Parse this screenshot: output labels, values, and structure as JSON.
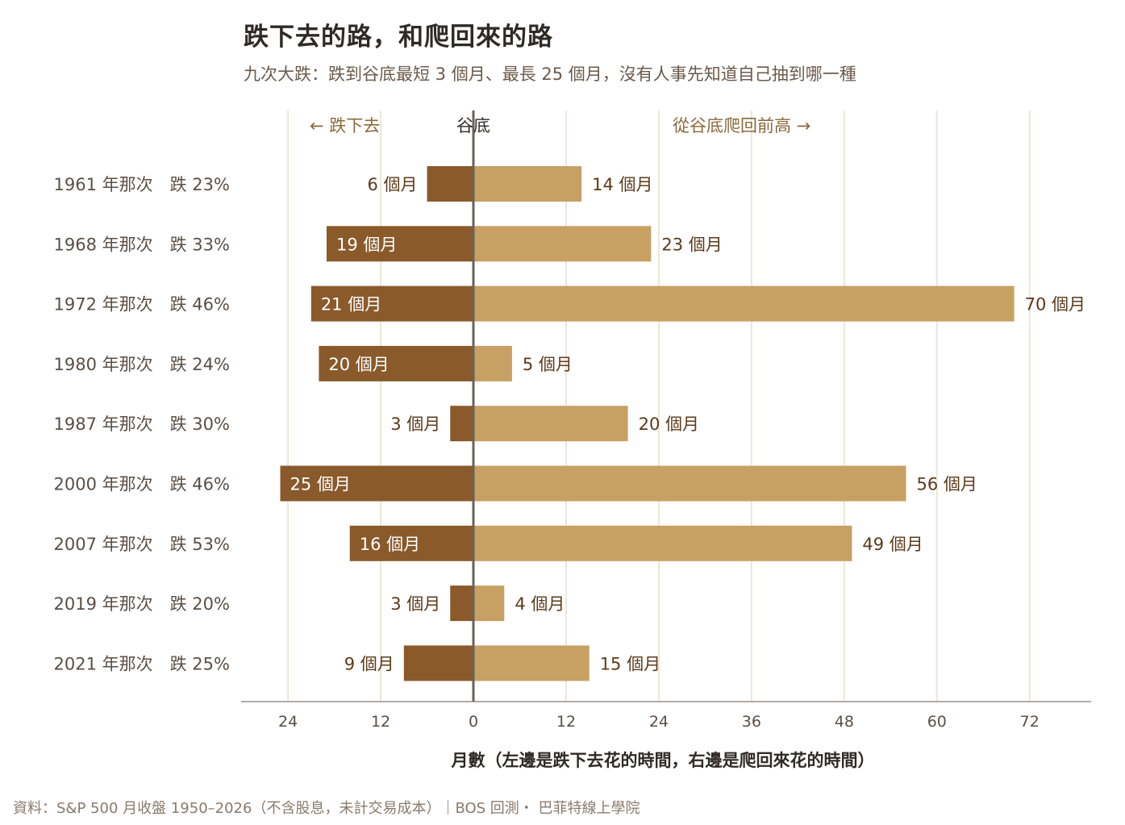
{
  "title": "跌下去的路，和爬回來的路",
  "subtitle": "九次大跌：跌到谷底最短 3 個月、最長 25 個月，沒有人事先知道自己抽到哪一種",
  "footer": "資料：S&P 500 月收盤 1950–2026（不含股息，未計交易成本）｜BOS 回測・ 巴菲特線上學院",
  "colors": {
    "decline": "#8a5a2b",
    "recovery": "#c8a063",
    "gridline": "#ece6d8",
    "zero_line": "#6b6258",
    "header_accent": "#8a6a3a"
  },
  "chart_data": {
    "type": "bar",
    "orientation": "horizontal-diverging",
    "header_left": "← 跌下去",
    "header_center": "谷底",
    "header_right": "從谷底爬回前高 →",
    "xlabel": "月數（左邊是跌下去花的時間，右邊是爬回來花的時間）",
    "xlim": [
      -30,
      80
    ],
    "xticks": [
      -24,
      -12,
      0,
      12,
      24,
      36,
      48,
      60,
      72
    ],
    "xtick_labels": [
      "24",
      "12",
      "0",
      "12",
      "24",
      "36",
      "48",
      "60",
      "72"
    ],
    "value_suffix": " 個月",
    "categories": [
      "1961 年那次　跌 23%",
      "1968 年那次　跌 33%",
      "1972 年那次　跌 46%",
      "1980 年那次　跌 24%",
      "1987 年那次　跌 30%",
      "2000 年那次　跌 46%",
      "2007 年那次　跌 53%",
      "2019 年那次　跌 20%",
      "2021 年那次　跌 25%"
    ],
    "series": [
      {
        "values": [
          6,
          19,
          21,
          20,
          3,
          25,
          16,
          3,
          9
        ]
      },
      {
        "values": [
          14,
          23,
          70,
          5,
          20,
          56,
          49,
          4,
          15
        ]
      }
    ],
    "grid": true
  }
}
